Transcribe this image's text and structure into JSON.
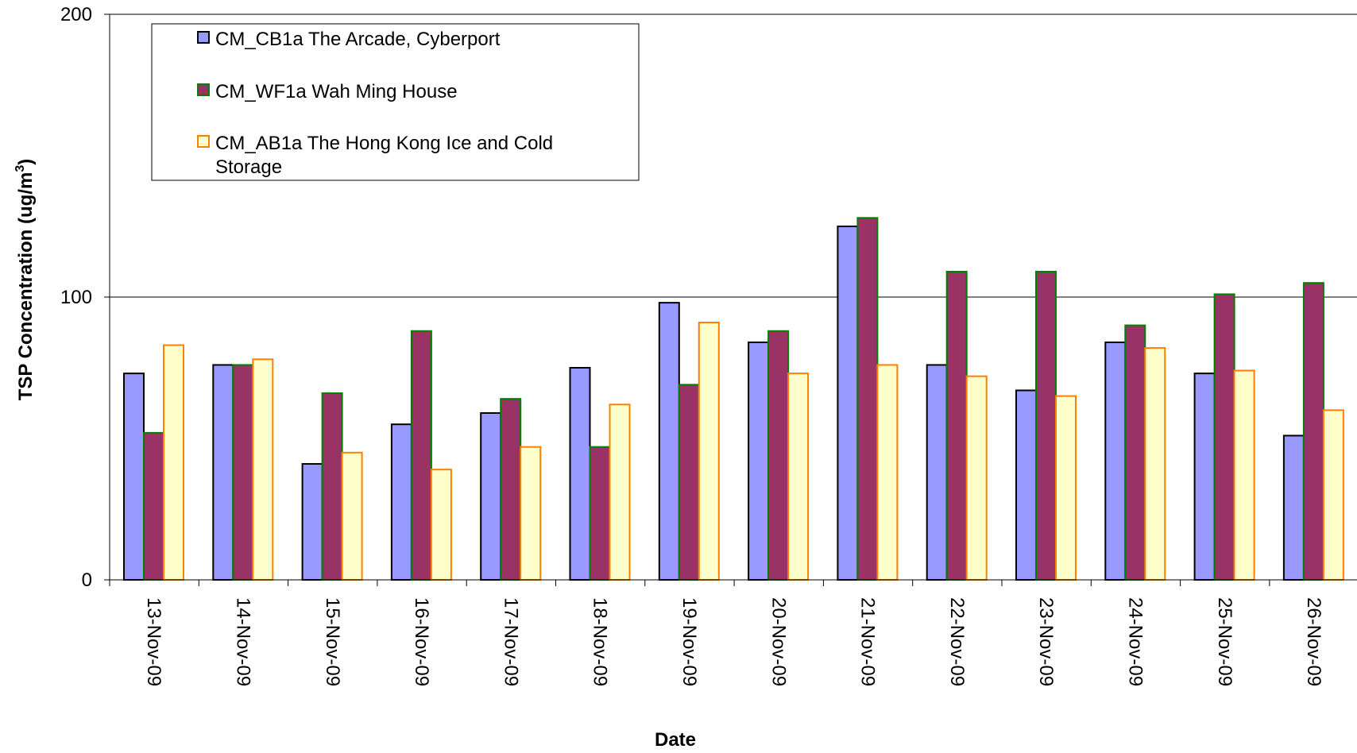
{
  "chart_data": {
    "type": "bar",
    "title": "",
    "xlabel": "Date",
    "ylabel": "TSP Concentration (ug/m",
    "ylabel_superscript": "3",
    "ylabel_suffix": ")",
    "ylim": [
      0,
      200
    ],
    "yticks": [
      0,
      100,
      200
    ],
    "grid": "horizontal",
    "legend_position": "top-left",
    "categories": [
      "13-Nov-09",
      "14-Nov-09",
      "15-Nov-09",
      "16-Nov-09",
      "17-Nov-09",
      "18-Nov-09",
      "19-Nov-09",
      "20-Nov-09",
      "21-Nov-09",
      "22-Nov-09",
      "23-Nov-09",
      "24-Nov-09",
      "25-Nov-09",
      "26-Nov-09"
    ],
    "series": [
      {
        "name": "CM_CB1a The Arcade, Cyberport",
        "fill": "#9999ff",
        "stroke": "#000000",
        "values": [
          73,
          76,
          41,
          55,
          59,
          75,
          98,
          84,
          125,
          76,
          67,
          84,
          73,
          51
        ]
      },
      {
        "name": "CM_WF1a Wah Ming House",
        "fill": "#993366",
        "stroke": "#008000",
        "values": [
          52,
          76,
          66,
          88,
          64,
          47,
          69,
          88,
          128,
          109,
          109,
          90,
          101,
          105
        ]
      },
      {
        "name": "CM_AB1a The Hong Kong Ice and Cold Storage",
        "legend_lines": [
          "CM_AB1a The Hong Kong Ice and Cold",
          "Storage"
        ],
        "fill": "#ffffcc",
        "stroke": "#ff8000",
        "values": [
          83,
          78,
          45,
          39,
          47,
          62,
          91,
          73,
          76,
          72,
          65,
          82,
          74,
          60
        ]
      }
    ]
  }
}
